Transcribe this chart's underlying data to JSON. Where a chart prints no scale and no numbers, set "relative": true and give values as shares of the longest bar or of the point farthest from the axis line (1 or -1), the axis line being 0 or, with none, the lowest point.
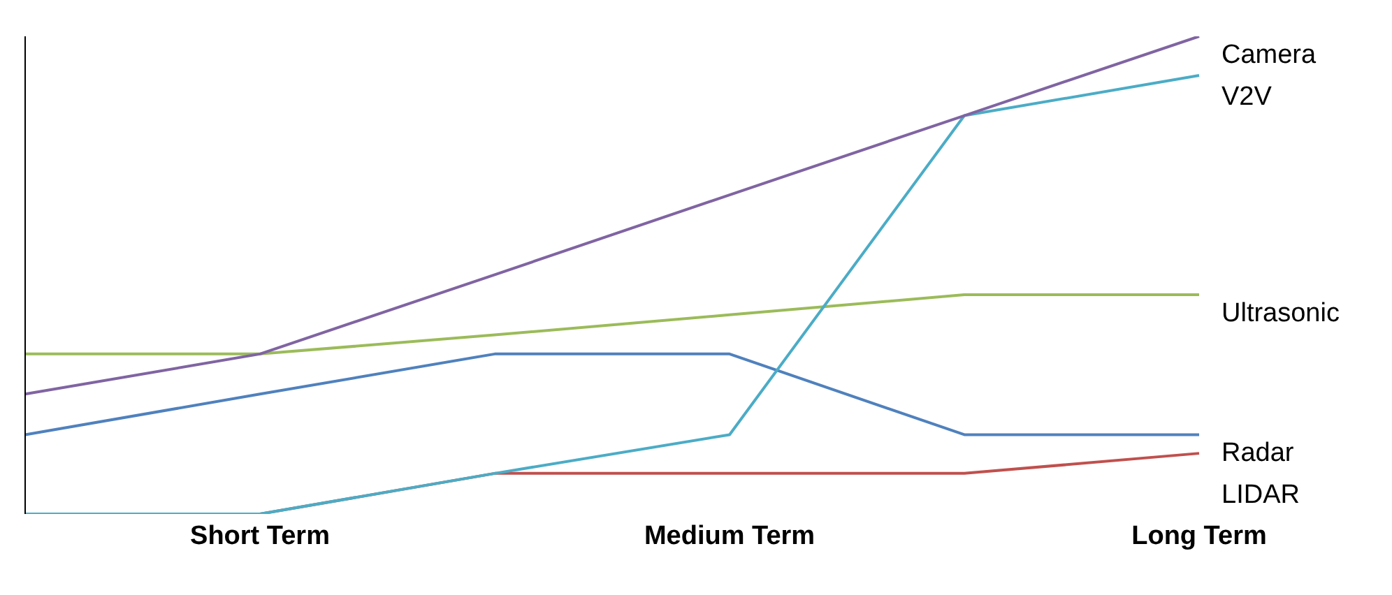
{
  "chart_data": {
    "type": "line",
    "relative": true,
    "categories": [
      null,
      "Short Term",
      null,
      "Medium Term",
      null,
      "Long Term"
    ],
    "legend": false,
    "marker": "none",
    "series": [
      {
        "name": "Camera",
        "color": "#8064a2",
        "values": [
          0.251,
          0.335,
          0.501,
          0.668,
          0.834,
          1
        ]
      },
      {
        "name": "V2V",
        "color": "#4bacc6",
        "values": [
          0,
          0,
          0.085,
          0.166,
          0.834,
          0.918
        ]
      },
      {
        "name": "Ultrasonic",
        "color": "#9bbb59",
        "values": [
          0.335,
          0.335,
          0.375,
          0.417,
          0.459,
          0.459
        ]
      },
      {
        "name": "Radar",
        "color": "#4f81bd",
        "values": [
          0.166,
          0.251,
          0.335,
          0.335,
          0.166,
          0.166
        ]
      },
      {
        "name": "LIDAR",
        "color": "#c0504d",
        "values": [
          0,
          0,
          0.085,
          0.085,
          0.085,
          0.127
        ]
      }
    ]
  }
}
